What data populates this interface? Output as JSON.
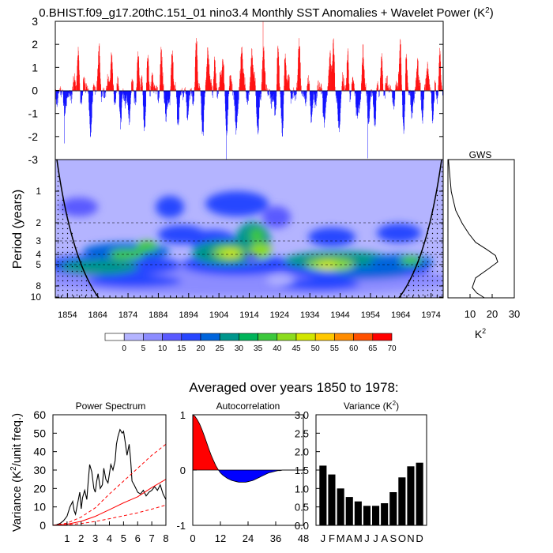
{
  "title": "0.BHIST.f09_g17.20thC.151_01 nino3.4 Monthly SST Anomalies + Wavelet Power (K",
  "title_sup": "2",
  "title_close": ")",
  "subtitle": "Averaged over years 1850 to 1978:",
  "chart_data": [
    {
      "id": "anomaly",
      "type": "bar",
      "ylabel": "",
      "ylim": [
        -3,
        3
      ],
      "yticks": [
        "3",
        "2",
        "1",
        "0",
        "-1",
        "-2",
        "-3"
      ],
      "positive_color": "#ff0000",
      "negative_color": "#0000ff",
      "x_years": [
        1850,
        1978
      ],
      "notable_values": [
        {
          "year": 1918.5,
          "value": 3.0
        },
        {
          "year": 1906.4,
          "value": -3.0
        },
        {
          "year": 1953.1,
          "value": -2.95
        },
        {
          "year": 1853.0,
          "value": -2.3
        }
      ]
    },
    {
      "id": "wavelet",
      "type": "heatmap",
      "ylabel": "Period (years)",
      "yticks": [
        "1",
        "2",
        "3",
        "4",
        "5",
        "8",
        "10"
      ],
      "xticks": [
        "1854",
        "1864",
        "1874",
        "1884",
        "1894",
        "1904",
        "1914",
        "1924",
        "1934",
        "1944",
        "1954",
        "1964",
        "1974"
      ],
      "x_years": [
        1850,
        1978
      ],
      "colorbar_labels": [
        "0",
        "5",
        "10",
        "15",
        "20",
        "25",
        "30",
        "35",
        "40",
        "45",
        "50",
        "55",
        "60",
        "65",
        "70"
      ],
      "colorbar_colors": [
        "#ffffff",
        "#b4b4ff",
        "#8c8cff",
        "#5a5aff",
        "#2846ff",
        "#0064dc",
        "#00968c",
        "#00b45a",
        "#3cc83c",
        "#8cdc1e",
        "#d2e600",
        "#ffc800",
        "#ff8c00",
        "#ff5000",
        "#ff0000"
      ],
      "features": [
        {
          "year": 1908,
          "period": 3.8,
          "power": 55
        },
        {
          "year": 1920,
          "period": 4.2,
          "power": 58
        },
        {
          "year": 1944,
          "period": 4.5,
          "power": 55
        },
        {
          "year": 1877,
          "period": 4.5,
          "power": 45
        },
        {
          "year": 1866,
          "period": 5.0,
          "power": 30
        }
      ]
    },
    {
      "id": "gws",
      "type": "line",
      "title": "GWS",
      "xlabel": "K",
      "xlabel_sup": "2",
      "xticks": [
        "10",
        "20",
        "30"
      ],
      "xlim": [
        0,
        30
      ],
      "points": [
        {
          "period": 0.5,
          "power": 0.2
        },
        {
          "period": 1.0,
          "power": 1.5
        },
        {
          "period": 1.5,
          "power": 3.5
        },
        {
          "period": 2.0,
          "power": 6.5
        },
        {
          "period": 2.5,
          "power": 9.5
        },
        {
          "period": 3.0,
          "power": 12.5
        },
        {
          "period": 3.5,
          "power": 17.5
        },
        {
          "period": 4.0,
          "power": 21.5
        },
        {
          "period": 4.6,
          "power": 22.5
        },
        {
          "period": 5.3,
          "power": 18.5
        },
        {
          "period": 6.5,
          "power": 12.5
        },
        {
          "period": 8.0,
          "power": 11.0
        },
        {
          "period": 9.0,
          "power": 13.0
        },
        {
          "period": 10.0,
          "power": 16.5
        }
      ]
    },
    {
      "id": "power-spectrum",
      "type": "line",
      "title": "Power Spectrum",
      "ylabel": "Variance (K",
      "ylabel_sup": "2",
      "ylabel_close": "/unit freq.)",
      "xlim": [
        0,
        8
      ],
      "ylim": [
        0,
        60
      ],
      "xticks": [
        "1",
        "2",
        "3",
        "4",
        "5",
        "6",
        "7",
        "8"
      ],
      "yticks": [
        "0",
        "10",
        "20",
        "30",
        "40",
        "50",
        "60"
      ],
      "series": [
        {
          "name": "spectrum",
          "color": "#000000",
          "dash": "",
          "x": [
            0.0,
            0.25,
            0.5,
            0.75,
            1.0,
            1.2,
            1.4,
            1.5,
            1.6,
            1.75,
            1.9,
            2.0,
            2.1,
            2.25,
            2.4,
            2.5,
            2.6,
            2.75,
            2.9,
            3.0,
            3.1,
            3.2,
            3.35,
            3.5,
            3.6,
            3.75,
            3.9,
            4.0,
            4.1,
            4.25,
            4.4,
            4.5,
            4.6,
            4.75,
            4.9,
            5.0,
            5.1,
            5.25,
            5.4,
            5.5,
            5.6,
            5.75,
            6.0,
            6.2,
            6.4,
            6.6,
            6.8,
            7.0,
            7.2,
            7.4,
            7.6,
            7.8,
            8.0
          ],
          "y": [
            0,
            0.3,
            1.0,
            2.5,
            5,
            10,
            13,
            8,
            6,
            12,
            18,
            9,
            15,
            19,
            14,
            24,
            33,
            29,
            20,
            18,
            24,
            28,
            20,
            22,
            31,
            25,
            23,
            28,
            33,
            30,
            35,
            44,
            48,
            52,
            50,
            51,
            46,
            38,
            44,
            36,
            24,
            22,
            18,
            17,
            19,
            16,
            18,
            19,
            21,
            19,
            22,
            17,
            14
          ]
        },
        {
          "name": "red-noise",
          "color": "#ff0000",
          "dash": "",
          "x": [
            0,
            1,
            2,
            3,
            4,
            5,
            6,
            7,
            8
          ],
          "y": [
            0,
            0.6,
            2.2,
            4.9,
            8.5,
            12.2,
            15.5,
            20.5,
            25
          ]
        },
        {
          "name": "upper-95",
          "color": "#ff0000",
          "dash": "4,3",
          "x": [
            0,
            1,
            2,
            3,
            4,
            5,
            6,
            7,
            8
          ],
          "y": [
            0,
            1.2,
            4.5,
            9.5,
            17,
            24,
            31,
            38,
            44
          ]
        },
        {
          "name": "lower-5",
          "color": "#ff0000",
          "dash": "4,3",
          "x": [
            0,
            1,
            2,
            3,
            4,
            5,
            6,
            7,
            8
          ],
          "y": [
            0,
            0.3,
            1.0,
            2.1,
            3.6,
            5.2,
            6.8,
            8.8,
            11
          ]
        }
      ]
    },
    {
      "id": "autocorrelation",
      "type": "area",
      "title": "Autocorrelation",
      "xlim": [
        0,
        48
      ],
      "ylim": [
        -1,
        1
      ],
      "xticks": [
        "0",
        "12",
        "24",
        "36",
        "48"
      ],
      "yticks": [
        "1",
        "0",
        "-1"
      ],
      "positive_color": "#ff0000",
      "negative_color": "#0000ff",
      "lags": [
        0,
        1,
        2,
        3,
        4,
        5,
        6,
        7,
        8,
        9,
        10,
        11,
        12,
        13,
        14,
        15,
        16,
        17,
        18,
        19,
        20,
        21,
        22,
        23,
        24,
        25,
        26,
        27,
        28,
        29,
        30,
        31,
        32,
        33,
        34,
        35,
        36,
        37,
        38,
        39,
        40,
        41,
        42,
        43,
        44,
        45,
        46,
        47,
        48
      ],
      "values": [
        1.0,
        0.97,
        0.91,
        0.83,
        0.73,
        0.62,
        0.5,
        0.38,
        0.27,
        0.17,
        0.08,
        0.01,
        -0.05,
        -0.09,
        -0.12,
        -0.15,
        -0.17,
        -0.19,
        -0.2,
        -0.21,
        -0.22,
        -0.22,
        -0.22,
        -0.22,
        -0.21,
        -0.2,
        -0.19,
        -0.17,
        -0.15,
        -0.13,
        -0.11,
        -0.09,
        -0.07,
        -0.05,
        -0.04,
        -0.03,
        -0.02,
        -0.01,
        -0.01,
        0.0,
        0.0,
        0.0,
        0.0,
        0.0,
        0.0,
        0.0,
        0.0,
        0.0,
        0.0
      ]
    },
    {
      "id": "variance",
      "type": "bar",
      "title": "Variance (K",
      "title_sup": "2",
      "title_close": ")",
      "categories": [
        "J",
        "F",
        "M",
        "A",
        "M",
        "J",
        "J",
        "A",
        "S",
        "O",
        "N",
        "D"
      ],
      "values": [
        1.62,
        1.38,
        1.0,
        0.77,
        0.65,
        0.53,
        0.53,
        0.6,
        0.9,
        1.3,
        1.6,
        1.7
      ],
      "ylim": [
        0,
        3.0
      ],
      "yticks": [
        "3.0",
        "2.5",
        "2.0",
        "1.5",
        "1.0",
        "0.5",
        "0.0"
      ],
      "bar_color": "#000000"
    }
  ]
}
